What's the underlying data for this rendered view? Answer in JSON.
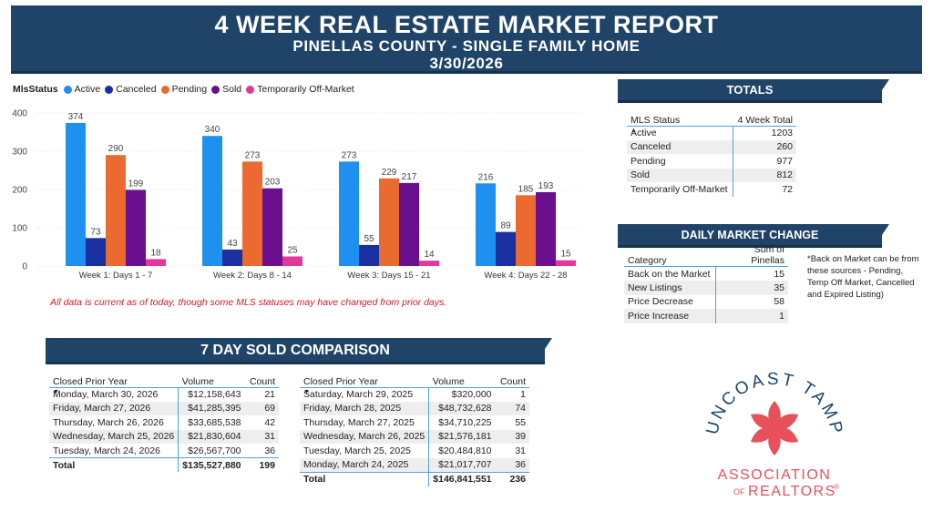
{
  "header": {
    "title": "4 WEEK REAL ESTATE MARKET REPORT",
    "subtitle": "PINELLAS COUNTY - SINGLE FAMILY HOME",
    "date": "3/30/2026"
  },
  "legend": {
    "title": "MlsStatus",
    "items": [
      "Active",
      "Canceled",
      "Pending",
      "Sold",
      "Temporarily Off-Market"
    ]
  },
  "colors": {
    "header_bg": "#1f4468",
    "Active": "#1e90f0",
    "Canceled": "#1a2fa0",
    "Pending": "#ea6a30",
    "Sold": "#6a0f8e",
    "Temporarily Off-Market": "#e3379b",
    "logo_flower": "#e8505b"
  },
  "chart_data": {
    "type": "bar",
    "categories": [
      "Week 1: Days 1 - 7",
      "Week 2: Days 8 - 14",
      "Week 3: Days 15 - 21",
      "Week 4: Days 22 - 28"
    ],
    "series": [
      {
        "name": "Active",
        "values": [
          374,
          340,
          273,
          216
        ]
      },
      {
        "name": "Canceled",
        "values": [
          73,
          43,
          55,
          89
        ]
      },
      {
        "name": "Pending",
        "values": [
          290,
          273,
          229,
          185
        ]
      },
      {
        "name": "Sold",
        "values": [
          199,
          203,
          217,
          193
        ]
      },
      {
        "name": "Temporarily Off-Market",
        "values": [
          18,
          25,
          14,
          15
        ]
      }
    ],
    "ylim": [
      0,
      400
    ],
    "yticks": [
      0,
      100,
      200,
      300,
      400
    ],
    "grid": true,
    "legend_position": "top-left"
  },
  "note": "All data is current as of today, though some MLS statuses may have changed from prior days.",
  "totals": {
    "title": "TOTALS",
    "col1": "MLS Status",
    "col2": "4 Week Total",
    "rows": [
      {
        "label": "Active",
        "value": "1203"
      },
      {
        "label": "Canceled",
        "value": "260"
      },
      {
        "label": "Pending",
        "value": "977"
      },
      {
        "label": "Sold",
        "value": "812"
      },
      {
        "label": "Temporarily Off-Market",
        "value": "72"
      }
    ]
  },
  "daily": {
    "title": "DAILY MARKET CHANGE",
    "col1": "Category",
    "col2": "Sum of Pinellas",
    "rows": [
      {
        "label": "Back on the Market",
        "value": "15"
      },
      {
        "label": "New Listings",
        "value": "35"
      },
      {
        "label": "Price Decrease",
        "value": "58"
      },
      {
        "label": "Price Increase",
        "value": "1"
      }
    ],
    "aside": "*Back on Market can be from these sources - Pending, Temp Off Market, Cancelled and Expired Listing)"
  },
  "sold": {
    "title": "7 DAY SOLD COMPARISON",
    "current": {
      "headers": [
        "Closed Prior Year",
        "Volume",
        "Count"
      ],
      "rows": [
        {
          "date": "Monday, March 30, 2026",
          "volume": "$12,158,643",
          "count": "21"
        },
        {
          "date": "Friday, March 27, 2026",
          "volume": "$41,285,395",
          "count": "69"
        },
        {
          "date": "Thursday, March 26, 2026",
          "volume": "$33,685,538",
          "count": "42"
        },
        {
          "date": "Wednesday, March 25, 2026",
          "volume": "$21,830,604",
          "count": "31"
        },
        {
          "date": "Tuesday, March 24, 2026",
          "volume": "$26,567,700",
          "count": "36"
        }
      ],
      "total": {
        "label": "Total",
        "volume": "$135,527,880",
        "count": "199"
      }
    },
    "prior": {
      "headers": [
        "Closed Prior Year",
        "Volume",
        "Count"
      ],
      "rows": [
        {
          "date": "Saturday, March 29, 2025",
          "volume": "$320,000",
          "count": "1"
        },
        {
          "date": "Friday, March 28, 2025",
          "volume": "$48,732,628",
          "count": "74"
        },
        {
          "date": "Thursday, March 27, 2025",
          "volume": "$34,710,225",
          "count": "55"
        },
        {
          "date": "Wednesday, March 26, 2025",
          "volume": "$21,576,181",
          "count": "39"
        },
        {
          "date": "Tuesday, March 25, 2025",
          "volume": "$20,484,810",
          "count": "31"
        },
        {
          "date": "Monday, March 24, 2025",
          "volume": "$21,017,707",
          "count": "36"
        }
      ],
      "total": {
        "label": "Total",
        "volume": "$146,841,551",
        "count": "236"
      }
    }
  },
  "logo": {
    "arc_text": "SUNCOAST TAMPA",
    "line1": "ASSOCIATION",
    "line2_prefix": "OF",
    "line2": "REALTORS",
    "mark": "®"
  }
}
